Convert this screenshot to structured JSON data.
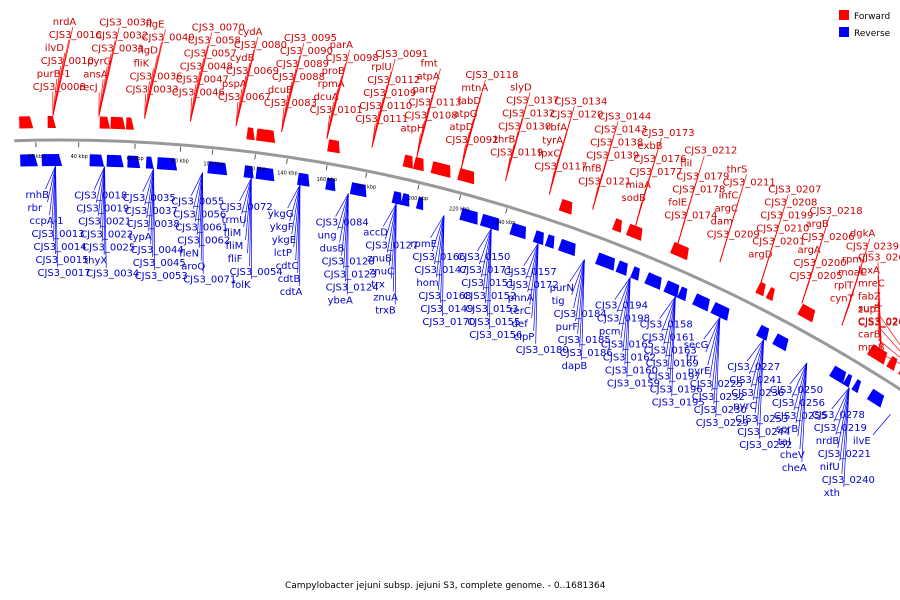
{
  "caption": "Campylobacter jejuni subsp. jejuni S3, complete genome. - 0..1681364",
  "legend": [
    {
      "label": "Forward",
      "color": "#ff0000"
    },
    {
      "label": "Reverse",
      "color": "#0000ff"
    }
  ],
  "colors": {
    "forward": "#ff0000",
    "reverse": "#0000ff",
    "forward_text": "#cc0000",
    "reverse_text": "#0000cc",
    "backbone": "#999999"
  },
  "scale_ticks": [
    "20 kbp",
    "40 kbp",
    "60 kbp",
    "80 kbp",
    "100 kbp",
    "120 kbp",
    "140 kbp",
    "160 kbp",
    "180 kbp",
    "200 kbp",
    "220 kbp",
    "240 kbp"
  ],
  "forward_genes": [
    "CJS3_0008",
    "purB-1",
    "CJS3_0010",
    "ilvD",
    "CJS3_0016",
    "nrdA",
    "recJ",
    "ansA",
    "pyrG",
    "CJS3_0031",
    "CJS3_0032",
    "CJS3_0030",
    "CJS3_0033",
    "CJS3_0036",
    "fliK",
    "flgD",
    "CJS3_0040",
    "flgE",
    "CJS3_0046",
    "CJS3_0047",
    "CJS3_0048",
    "CJS3_0057",
    "CJS3_0058",
    "CJS3_0070",
    "CJS3_0067",
    "pspA",
    "CJS3_0069",
    "cydB",
    "CJS3_0080",
    "cydA",
    "CJS3_0083",
    "dcuB",
    "CJS3_0088",
    "CJS3_0089",
    "CJS3_0090",
    "CJS3_0095",
    "CJS3_0101",
    "dcuA",
    "rpmA",
    "proB",
    "CJS3_0098",
    "parA",
    "CJS3_0111",
    "CJS3_0110",
    "CJS3_0109",
    "CJS3_0112",
    "rplU",
    "CJS3_0091",
    "atpH",
    "CJS3_0108",
    "CJS3_0113",
    "parB",
    "atpA",
    "fmt",
    "CJS3_0092",
    "atpD",
    "atpG",
    "fabD",
    "mtnA",
    "CJS3_0118",
    "CJS3_0119",
    "thrB",
    "CJS3_0130",
    "CJS3_0132",
    "CJS3_0137",
    "slyD",
    "CJS3_0117",
    "lpxC",
    "tyrA",
    "rbfA",
    "CJS3_0120",
    "CJS3_0134",
    "CJS3_0121",
    "infB",
    "CJS3_0139",
    "CJS3_0138",
    "CJS3_0143",
    "CJS3_0144",
    "sodB",
    "miaA",
    "CJS3_0177",
    "CJS3_0176",
    "exbB",
    "CJS3_0173",
    "CJS3_0174",
    "folE",
    "CJS3_0178",
    "CJS3_0179",
    "fliI",
    "CJS3_0212",
    "CJS3_0209",
    "dam",
    "argC",
    "infC",
    "CJS3_0211",
    "thrS",
    "argD",
    "CJS3_0201",
    "CJS3_0210",
    "CJS3_0199",
    "CJS3_0208",
    "CJS3_0207",
    "CJS3_0205",
    "CJS3_0200",
    "argA",
    "CJS3_0206",
    "argB",
    "CJS3_0218",
    "cynT",
    "rplT",
    "moaC",
    "rpmI",
    "CJS3_0239",
    "dgkA",
    "CJS3_0246",
    "zupT",
    "fabZ",
    "mreC",
    "lpxA",
    "CJS3_0262",
    "mreB",
    "carB",
    "CJS3_0269",
    "surE"
  ],
  "reverse_genes": [
    "rnhB",
    "rbr",
    "ccpA-1",
    "CJS3_0013",
    "CJS3_0014",
    "CJS3_0015",
    "CJS3_0017",
    "CJS3_0018",
    "CJS3_0019",
    "CJS3_0021",
    "CJS3_0022",
    "CJS3_0025",
    "thyX",
    "CJS3_0034",
    "CJS3_0035",
    "CJS3_0037",
    "CJS3_0038",
    "typA",
    "CJS3_0044",
    "CJS3_0045",
    "CJS3_0053",
    "CJS3_0055",
    "CJS3_0056",
    "CJS3_0061",
    "CJS3_0062",
    "fleN",
    "aroQ",
    "CJS3_0071",
    "CJS3_0072",
    "trmU",
    "fliM",
    "fliM",
    "fliF",
    "CJS3_0054",
    "folK",
    "ykgG",
    "ykgF",
    "ykgE",
    "lctP",
    "cdtC",
    "cdtB",
    "cdtA",
    "CJS3_0084",
    "ung",
    "dusB",
    "CJS3_0128",
    "CJS3_0123",
    "CJS3_0124",
    "ybeA",
    "accD",
    "CJS3_0127",
    "znuB",
    "znuC",
    "trx",
    "znuA",
    "trxB",
    "rpmE",
    "CJS3_0166",
    "CJS3_0147",
    "hom",
    "CJS3_0168",
    "CJS3_0149",
    "CJS3_0170",
    "CJS3_0150",
    "CJS3_0171",
    "CJS3_0151",
    "CJS3_0152",
    "CJS3_0153",
    "CJS3_0155",
    "CJS3_0156",
    "CJS3_0157",
    "CJS3_0172",
    "phnA",
    "terC",
    "def",
    "clpP",
    "CJS3_0180",
    "purN",
    "tig",
    "CJS3_0184",
    "purF",
    "CJS3_0185",
    "CJS3_0186",
    "dapB",
    "CJS3_0194",
    "CJS3_0198",
    "pcm",
    "CJS3_0165",
    "CJS3_0162",
    "CJS3_0160",
    "CJS3_0159",
    "CJS3_0158",
    "CJS3_0161",
    "CJS3_0163",
    "CJS3_0169",
    "CJS3_0197",
    "CJS3_0196",
    "CJS3_0195",
    "secG",
    "frr",
    "pyrE",
    "CJS3_0225",
    "CJS3_0232",
    "CJS3_0230",
    "CJS3_0229",
    "CJS3_0227",
    "CJS3_0241",
    "CJS3_0236",
    "pyrC",
    "CJS3_0253",
    "CJS3_0244",
    "CJS3_0252",
    "CJS3_0250",
    "CJS3_0256",
    "CJS3_0255",
    "serB",
    "tal",
    "cheV",
    "cheA",
    "CJS3_0278",
    "CJS3_0219",
    "nrdB",
    "CJS3_0221",
    "nifU",
    "CJS3_0240",
    "xth",
    "ilvE"
  ]
}
